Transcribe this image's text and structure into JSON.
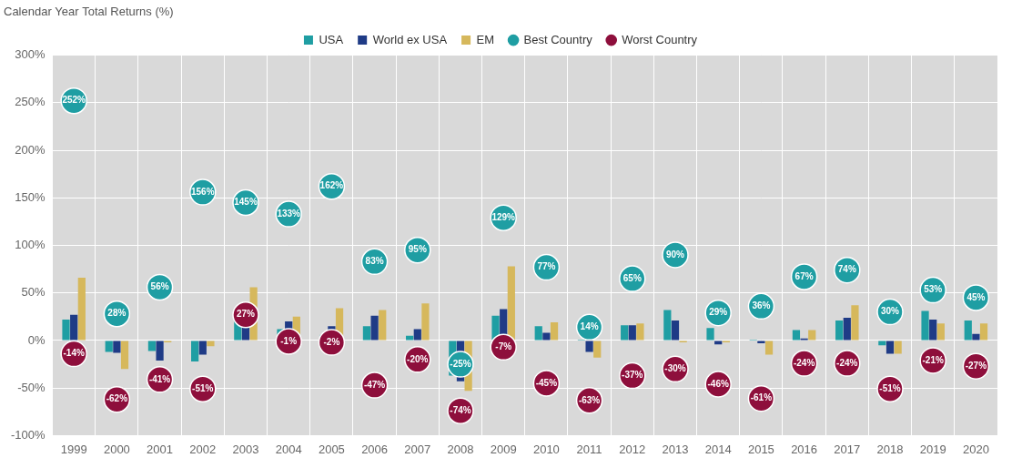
{
  "chart_data": {
    "type": "bar",
    "title": "Calendar Year Total Returns (%)",
    "categories": [
      "1999",
      "2000",
      "2001",
      "2002",
      "2003",
      "2004",
      "2005",
      "2006",
      "2007",
      "2008",
      "2009",
      "2010",
      "2011",
      "2012",
      "2013",
      "2014",
      "2015",
      "2016",
      "2017",
      "2018",
      "2019",
      "2020"
    ],
    "series": [
      {
        "name": "USA",
        "type": "bar",
        "color": "#1f9ea3",
        "values": [
          22,
          -12,
          -11,
          -22,
          31,
          12,
          6,
          15,
          5,
          -37,
          26,
          15,
          1,
          16,
          32,
          13,
          1,
          11,
          21,
          -5,
          31,
          21
        ]
      },
      {
        "name": "World ex USA",
        "type": "bar",
        "color": "#1f3b86",
        "values": [
          27,
          -13,
          -21,
          -15,
          40,
          20,
          15,
          26,
          12,
          -43,
          33,
          8,
          -12,
          16,
          21,
          -4,
          -3,
          2,
          24,
          -14,
          22,
          7
        ]
      },
      {
        "name": "EM",
        "type": "bar",
        "color": "#d6b85c",
        "values": [
          66,
          -30,
          -2,
          -6,
          56,
          25,
          34,
          32,
          39,
          -53,
          78,
          19,
          -18,
          18,
          -2,
          -2,
          -15,
          11,
          37,
          -14,
          18,
          18
        ]
      },
      {
        "name": "Best Country",
        "type": "scatter",
        "marker": "circle",
        "color": "#1f9ea3",
        "data_labels": true,
        "values": [
          252,
          28,
          56,
          156,
          145,
          133,
          162,
          83,
          95,
          -25,
          129,
          77,
          14,
          65,
          90,
          29,
          36,
          67,
          74,
          30,
          53,
          45
        ],
        "value_labels": [
          "252%",
          "28%",
          "56%",
          "156%",
          "145%",
          "133%",
          "162%",
          "83%",
          "95%",
          "-25%",
          "129%",
          "77%",
          "14%",
          "65%",
          "90%",
          "29%",
          "36%",
          "67%",
          "74%",
          "30%",
          "53%",
          "45%"
        ]
      },
      {
        "name": "Worst Country",
        "type": "scatter",
        "marker": "circle",
        "color": "#8e0f3c",
        "data_labels": true,
        "values": [
          -14,
          -62,
          -41,
          -51,
          27,
          -1,
          -2,
          -47,
          -20,
          -74,
          -7,
          -45,
          -63,
          -37,
          -30,
          -46,
          -61,
          -24,
          -24,
          -51,
          -21,
          -27
        ],
        "value_labels": [
          "-14%",
          "-62%",
          "-41%",
          "-51%",
          "27%",
          "-1%",
          "-2%",
          "-47%",
          "-20%",
          "-74%",
          "-7%",
          "-45%",
          "-63%",
          "-37%",
          "-30%",
          "-46%",
          "-61%",
          "-24%",
          "-24%",
          "-51%",
          "-21%",
          "-27%"
        ]
      }
    ],
    "ylim": [
      -100,
      300
    ],
    "yticks": [
      {
        "value": -100,
        "label": "-100%"
      },
      {
        "value": -50,
        "label": "-50%"
      },
      {
        "value": 0,
        "label": "0%"
      },
      {
        "value": 50,
        "label": "50%"
      },
      {
        "value": 100,
        "label": "100%"
      },
      {
        "value": 150,
        "label": "150%"
      },
      {
        "value": 200,
        "label": "200%"
      },
      {
        "value": 250,
        "label": "250%"
      },
      {
        "value": 300,
        "label": "300%"
      }
    ],
    "grid": true,
    "legend": "top"
  }
}
